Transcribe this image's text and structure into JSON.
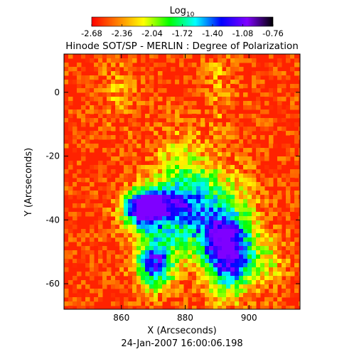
{
  "chart_data": {
    "type": "heatmap",
    "title": "Hinode SOT/SP - MERLIN : Degree of Polarization",
    "xlabel": "X (Arcseconds)",
    "ylabel": "Y (Arcseconds)",
    "footer": "24-Jan-2007 16:00:06.198",
    "xlim": [
      842,
      916
    ],
    "ylim": [
      -68,
      12
    ],
    "x_ticks": [
      860,
      880,
      900
    ],
    "y_ticks": [
      0,
      -20,
      -40,
      -60
    ],
    "colorbar": {
      "label_base": "Log",
      "label_sub": "10",
      "range": [
        -2.68,
        -0.76
      ],
      "ticks": [
        "-2.68",
        "-2.36",
        "-2.04",
        "-1.72",
        "-1.40",
        "-1.08",
        "-0.76"
      ],
      "colormap": [
        "#ff0000",
        "#ff8000",
        "#ffff00",
        "#00ff00",
        "#00ffff",
        "#0000ff",
        "#8000ff",
        "#000000"
      ]
    }
  }
}
